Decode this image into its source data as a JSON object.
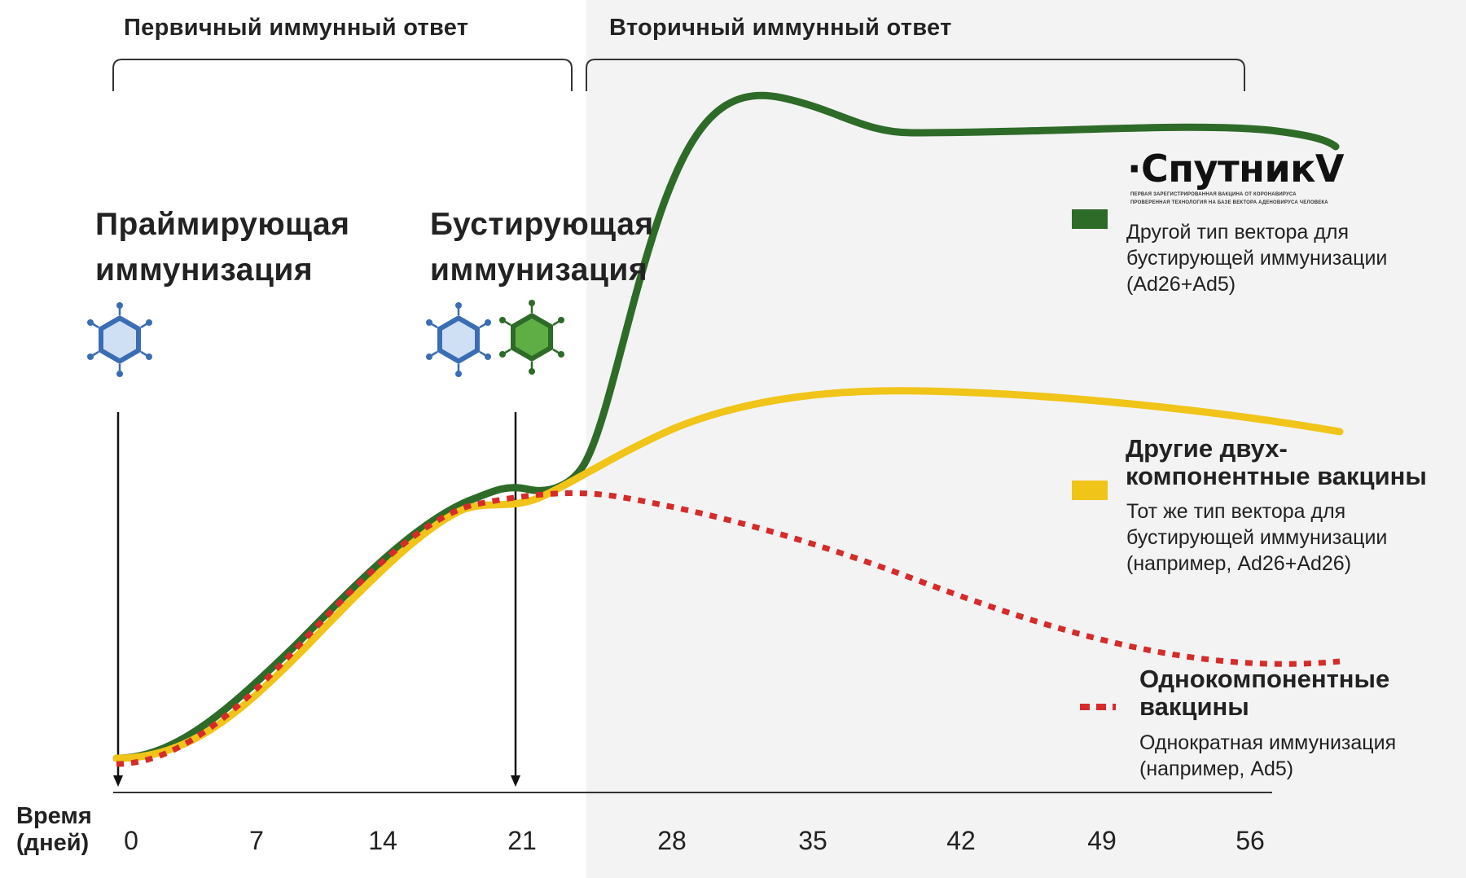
{
  "phases": {
    "primary": "Первичный иммунный ответ",
    "secondary": "Вторичный иммунный ответ"
  },
  "steps": {
    "priming": [
      "Праймирующая",
      "иммунизация"
    ],
    "boosting": [
      "Бустирующая",
      "иммунизация"
    ]
  },
  "brand": {
    "name": "·СпутникV",
    "sub1": "ПЕРВАЯ ЗАРЕГИСТРИРОВАННАЯ ВАКЦИНА ОТ КОРОНАВИРУСА",
    "sub2": "ПРОВЕРЕННАЯ ТЕХНОЛОГИЯ НА БАЗЕ ВЕКТОРА АДЕНОВИРУСА ЧЕЛОВЕКА"
  },
  "legend": {
    "green": {
      "lines": [
        "Другой тип вектора для",
        "бустирующей иммунизации",
        "(Ad26+Ad5)"
      ],
      "color": "#2e6b28"
    },
    "yellow": {
      "title": [
        "Другие двух-",
        "компонентные вакцины"
      ],
      "lines": [
        "Тот же тип вектора для",
        "бустирующей иммунизации",
        "(например, Ad26+Ad26)"
      ],
      "color": "#f0c419"
    },
    "red": {
      "title": [
        "Однокомпонентные",
        "вакцины"
      ],
      "lines": [
        "Однократная иммунизация",
        "(например, Ad5)"
      ],
      "color": "#d62b2b"
    }
  },
  "axis": {
    "time_label": [
      "Время",
      "(дней)"
    ],
    "ticks": [
      "0",
      "7",
      "14",
      "21",
      "28",
      "35",
      "42",
      "49",
      "56"
    ]
  },
  "icons": {
    "priming": "blue-hexagon-virus-icon",
    "boost_blue": "blue-hexagon-virus-icon",
    "boost_green": "green-hexagon-virus-icon"
  }
}
